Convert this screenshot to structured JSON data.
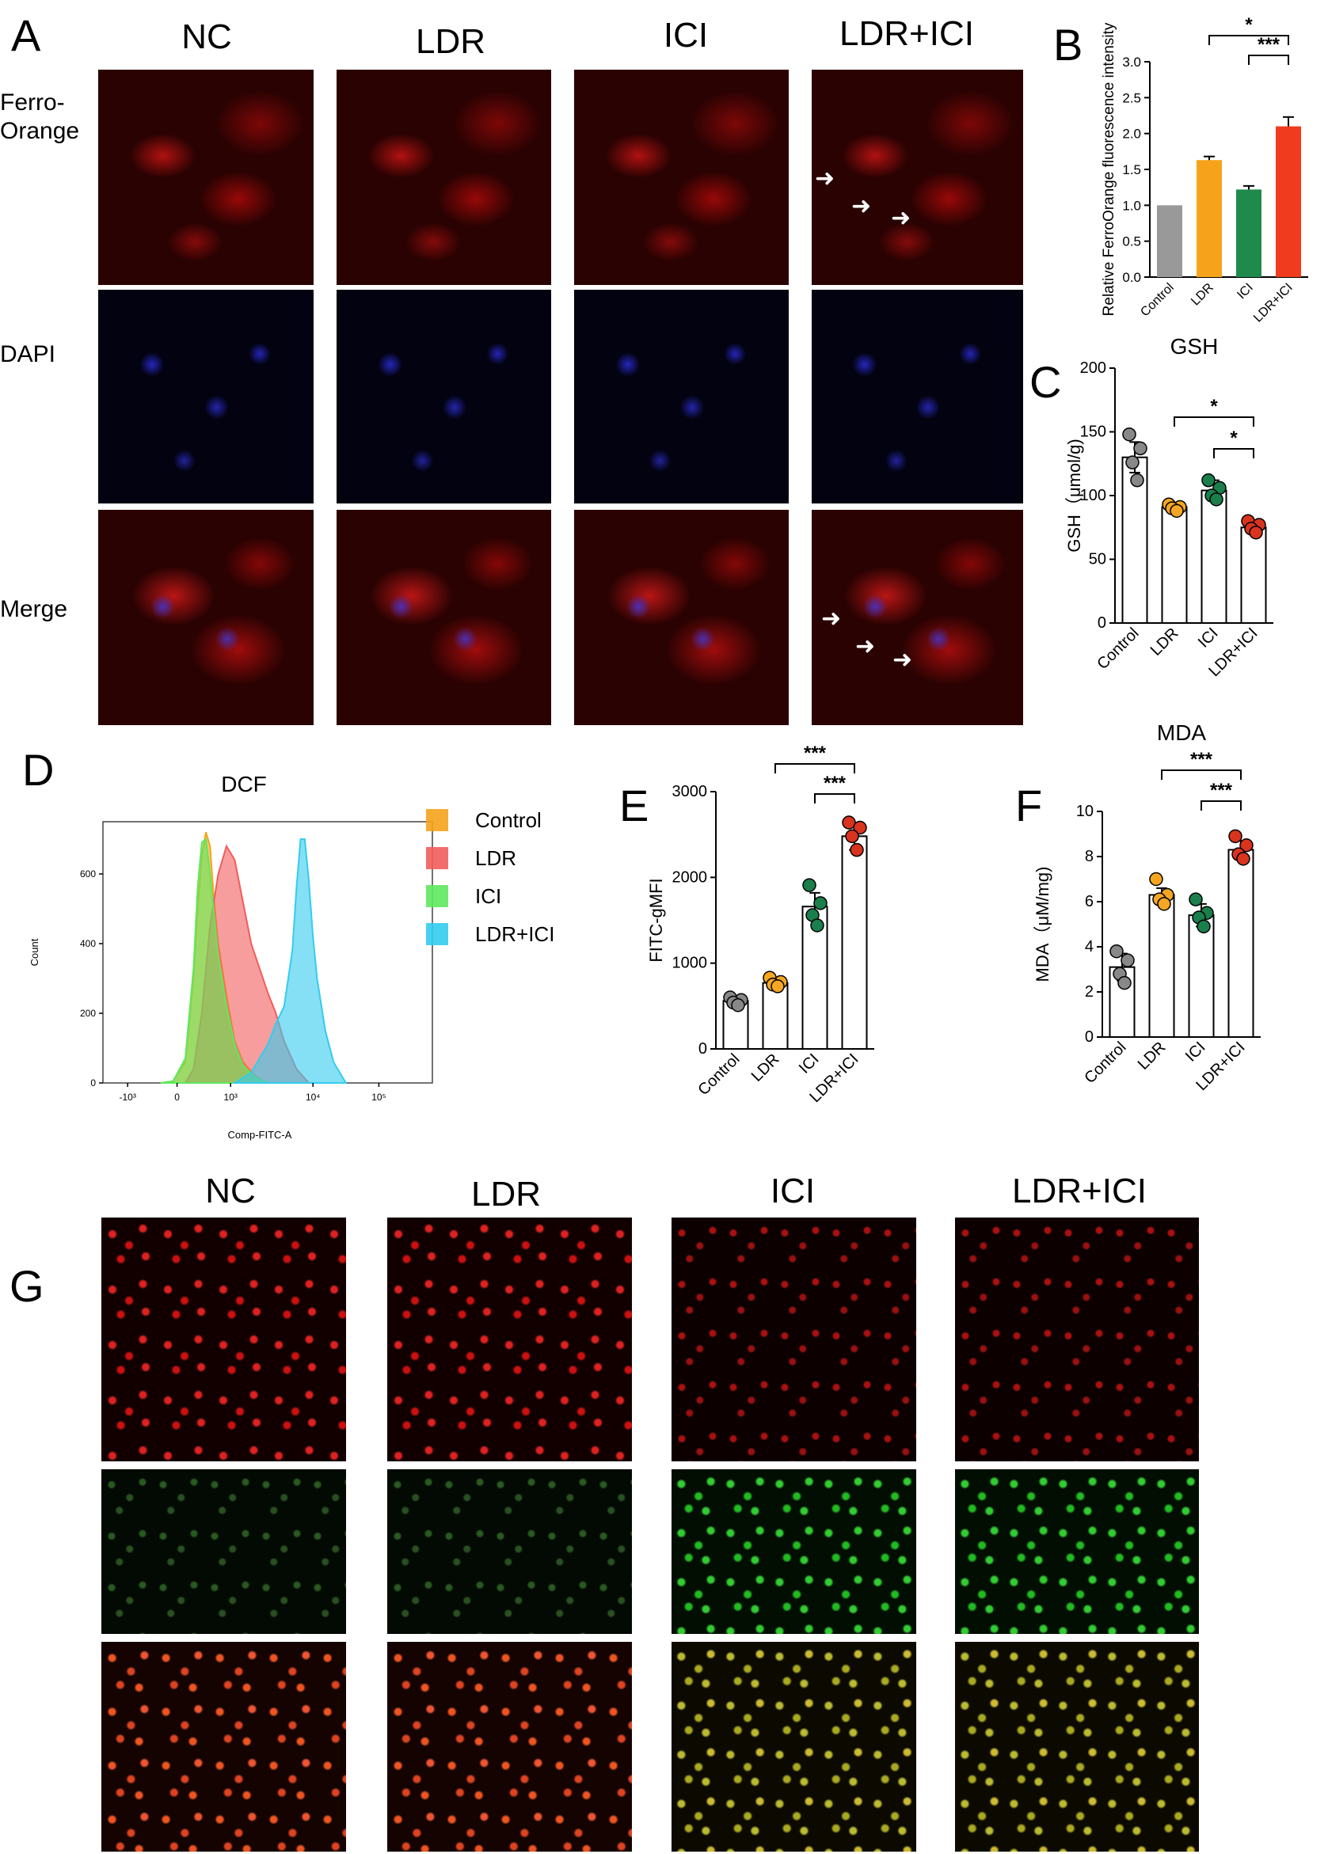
{
  "panel_letters": {
    "A": "A",
    "B": "B",
    "C": "C",
    "D": "D",
    "E": "E",
    "F": "F",
    "G": "G"
  },
  "panelA": {
    "columns": [
      "NC",
      "LDR",
      "ICI",
      "LDR+ICI"
    ],
    "rows": {
      "ferro": "Ferro-\nOrange",
      "dapi": "DAPI",
      "merge": "Merge"
    }
  },
  "panelG": {
    "columns": [
      "NC",
      "LDR",
      "ICI",
      "LDR+ICI"
    ]
  },
  "chart_data": [
    {
      "id": "B",
      "type": "bar",
      "ylabel": "Relative FerroOrange fluorescence intensity",
      "categories": [
        "Control",
        "LDR",
        "ICI",
        "LDR+ICI"
      ],
      "values": [
        1.0,
        1.63,
        1.22,
        2.1
      ],
      "errors": [
        0,
        0.05,
        0.05,
        0.13
      ],
      "colors": [
        "#999999",
        "#f7a21b",
        "#1f8a4c",
        "#f03b1e"
      ],
      "ylim": [
        0,
        3.0
      ],
      "yticks": [
        0.0,
        0.5,
        1.0,
        1.5,
        2.0,
        2.5,
        3.0
      ],
      "significance": [
        {
          "from": 1,
          "to": 3,
          "label": "*"
        },
        {
          "from": 2,
          "to": 3,
          "label": "***"
        }
      ]
    },
    {
      "id": "C",
      "type": "bar",
      "title": "GSH",
      "ylabel": "GSH（μmol/g)",
      "categories": [
        "Control",
        "LDR",
        "ICI",
        "LDR+ICI"
      ],
      "values": [
        130,
        91,
        104,
        75
      ],
      "errors": [
        12,
        3,
        8,
        4
      ],
      "points": [
        [
          148,
          137,
          126,
          112
        ],
        [
          93,
          91,
          90,
          88
        ],
        [
          112,
          106,
          100,
          97
        ],
        [
          80,
          77,
          74,
          71
        ]
      ],
      "point_colors": [
        "#888888",
        "#f5a623",
        "#1a7f4b",
        "#d9341e"
      ],
      "ylim": [
        0,
        200
      ],
      "yticks": [
        0,
        50,
        100,
        150,
        200
      ],
      "significance": [
        {
          "from": 1,
          "to": 3,
          "label": "*"
        },
        {
          "from": 2,
          "to": 3,
          "label": "*"
        }
      ]
    },
    {
      "id": "D",
      "type": "area",
      "title": "DCF",
      "xlabel": "Comp-FITC-A",
      "ylabel": "Count",
      "yticks": [
        0,
        200,
        400,
        600
      ],
      "xtick_labels": [
        "-10³",
        "0",
        "10³",
        "10⁴",
        "10⁵"
      ],
      "ylim": [
        0,
        750
      ],
      "series": [
        {
          "name": "Control",
          "color": "#f5a31a",
          "x": [
            -0.3,
            -0.15,
            0,
            0.1,
            0.15,
            0.2,
            0.25,
            0.3,
            0.35,
            0.4,
            0.5,
            0.6,
            0.7,
            0.85,
            1.0
          ],
          "y": [
            0,
            5,
            60,
            300,
            500,
            650,
            720,
            680,
            520,
            400,
            250,
            120,
            60,
            20,
            0
          ]
        },
        {
          "name": "LDR",
          "color": "#f25c5c",
          "x": [
            0,
            0.1,
            0.2,
            0.3,
            0.4,
            0.5,
            0.6,
            0.7,
            0.8,
            0.9,
            1.0,
            1.1,
            1.2,
            1.35,
            1.5
          ],
          "y": [
            0,
            40,
            200,
            450,
            600,
            680,
            640,
            520,
            400,
            330,
            260,
            200,
            120,
            40,
            0
          ]
        },
        {
          "name": "ICI",
          "color": "#5ee85e",
          "x": [
            -0.3,
            -0.15,
            0,
            0.1,
            0.15,
            0.2,
            0.25,
            0.3,
            0.35,
            0.4,
            0.5,
            0.6,
            0.7,
            0.85,
            1.0
          ],
          "y": [
            0,
            5,
            70,
            330,
            560,
            690,
            700,
            600,
            480,
            360,
            220,
            110,
            50,
            15,
            0
          ]
        },
        {
          "name": "LDR+ICI",
          "color": "#33ccee",
          "x": [
            0.6,
            0.8,
            1.0,
            1.1,
            1.2,
            1.3,
            1.35,
            1.4,
            1.45,
            1.5,
            1.55,
            1.6,
            1.7,
            1.8,
            1.95
          ],
          "y": [
            0,
            30,
            110,
            170,
            220,
            380,
            560,
            700,
            700,
            580,
            420,
            300,
            150,
            60,
            0
          ]
        }
      ]
    },
    {
      "id": "E",
      "type": "bar",
      "ylabel": "FITC-gMFI",
      "categories": [
        "Control",
        "LDR",
        "ICI",
        "LDR+ICI"
      ],
      "values": [
        560,
        770,
        1660,
        2480
      ],
      "errors": [
        60,
        50,
        160,
        160
      ],
      "points": [
        [
          600,
          570,
          540,
          510
        ],
        [
          830,
          780,
          750,
          730
        ],
        [
          1910,
          1700,
          1560,
          1440
        ],
        [
          2640,
          2580,
          2480,
          2320
        ]
      ],
      "point_colors": [
        "#888888",
        "#f5a623",
        "#1a7f4b",
        "#d9341e"
      ],
      "ylim": [
        0,
        3000
      ],
      "yticks": [
        0,
        1000,
        2000,
        3000
      ],
      "significance": [
        {
          "from": 1,
          "to": 3,
          "label": "***"
        },
        {
          "from": 2,
          "to": 3,
          "label": "***"
        }
      ]
    },
    {
      "id": "F",
      "type": "bar",
      "title": "MDA",
      "ylabel": "MDA（μM/mg)",
      "categories": [
        "Control",
        "LDR",
        "ICI",
        "LDR+ICI"
      ],
      "values": [
        3.1,
        6.3,
        5.4,
        8.3
      ],
      "errors": [
        0.6,
        0.3,
        0.5,
        0.4
      ],
      "points": [
        [
          3.8,
          3.4,
          2.8,
          2.4
        ],
        [
          7.0,
          6.3,
          6.1,
          5.9
        ],
        [
          6.1,
          5.5,
          5.3,
          4.9
        ],
        [
          8.9,
          8.5,
          8.1,
          7.9
        ]
      ],
      "point_colors": [
        "#888888",
        "#f5a623",
        "#1a7f4b",
        "#d9341e"
      ],
      "ylim": [
        0,
        10
      ],
      "yticks": [
        0,
        2,
        4,
        6,
        8,
        10
      ],
      "significance": [
        {
          "from": 1,
          "to": 3,
          "label": "***"
        },
        {
          "from": 2,
          "to": 3,
          "label": "***"
        }
      ]
    }
  ]
}
